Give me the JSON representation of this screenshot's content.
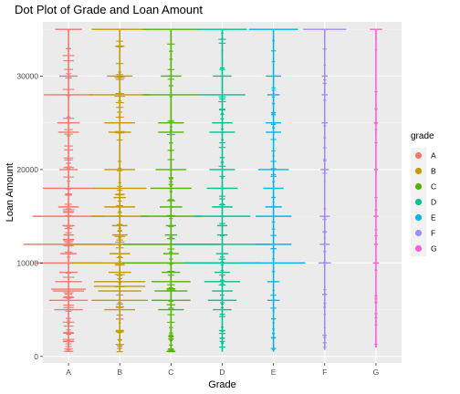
{
  "chart_data": {
    "type": "scatter",
    "title": "Dot Plot of Grade and Loan Amount",
    "xlabel": "Grade",
    "ylabel": "Loan Amount",
    "categories": [
      "A",
      "B",
      "C",
      "D",
      "E",
      "F",
      "G"
    ],
    "y_ticks": [
      0,
      10000,
      20000,
      30000
    ],
    "y_tick_labels": [
      "0",
      "10000",
      "20000",
      "30000"
    ],
    "ylim": [
      -700,
      35800
    ],
    "grid": true,
    "legend": {
      "title": "grade",
      "placement": "right",
      "entries": [
        "A",
        "B",
        "C",
        "D",
        "E",
        "F",
        "G"
      ]
    },
    "colors": {
      "A": "#F8766D",
      "B": "#C49A00",
      "C": "#53B400",
      "D": "#00C094",
      "E": "#00B6EB",
      "F": "#A58AFF",
      "G": "#FB61D7",
      "panel": "#EBEBEB",
      "grid_major": "#FFFFFF",
      "grid_minor": "#F5F5F5"
    },
    "series": [
      {
        "name": "A",
        "min": 500,
        "max": 35000,
        "stacks": [
          [
            5000,
            0.28
          ],
          [
            6000,
            0.38
          ],
          [
            7000,
            0.3
          ],
          [
            7200,
            0.34
          ],
          [
            8000,
            0.26
          ],
          [
            9000,
            0.18
          ],
          [
            10000,
            0.65
          ],
          [
            11000,
            0.16
          ],
          [
            12000,
            0.88
          ],
          [
            13000,
            0.1
          ],
          [
            14000,
            0.12
          ],
          [
            15000,
            0.7
          ],
          [
            16000,
            0.2
          ],
          [
            18000,
            0.5
          ],
          [
            20000,
            0.18
          ],
          [
            24000,
            0.2
          ],
          [
            25000,
            0.22
          ],
          [
            28000,
            0.48
          ],
          [
            30000,
            0.18
          ],
          [
            35000,
            0.26
          ]
        ]
      },
      {
        "name": "B",
        "min": 500,
        "max": 35000,
        "stacks": [
          [
            5000,
            0.3
          ],
          [
            6000,
            0.55
          ],
          [
            7000,
            0.42
          ],
          [
            7500,
            0.5
          ],
          [
            8000,
            0.5
          ],
          [
            9000,
            0.22
          ],
          [
            10000,
            0.95
          ],
          [
            11000,
            0.2
          ],
          [
            12000,
            0.95
          ],
          [
            13000,
            0.15
          ],
          [
            14000,
            0.15
          ],
          [
            15000,
            0.55
          ],
          [
            16000,
            0.3
          ],
          [
            17000,
            0.12
          ],
          [
            18000,
            0.52
          ],
          [
            20000,
            0.3
          ],
          [
            24000,
            0.22
          ],
          [
            25000,
            0.3
          ],
          [
            28000,
            0.6
          ],
          [
            30000,
            0.25
          ],
          [
            35000,
            0.55
          ]
        ]
      },
      {
        "name": "C",
        "min": 500,
        "max": 35000,
        "stacks": [
          [
            5000,
            0.25
          ],
          [
            6000,
            0.38
          ],
          [
            7000,
            0.32
          ],
          [
            8000,
            0.38
          ],
          [
            9000,
            0.18
          ],
          [
            10000,
            0.95
          ],
          [
            11000,
            0.15
          ],
          [
            12000,
            0.95
          ],
          [
            13000,
            0.12
          ],
          [
            14000,
            0.1
          ],
          [
            15000,
            0.6
          ],
          [
            16000,
            0.22
          ],
          [
            18000,
            0.4
          ],
          [
            20000,
            0.3
          ],
          [
            24000,
            0.25
          ],
          [
            25000,
            0.25
          ],
          [
            28000,
            0.55
          ],
          [
            30000,
            0.2
          ],
          [
            35000,
            0.55
          ]
        ]
      },
      {
        "name": "D",
        "min": 500,
        "max": 35000,
        "stacks": [
          [
            5000,
            0.18
          ],
          [
            6000,
            0.28
          ],
          [
            7000,
            0.2
          ],
          [
            8000,
            0.35
          ],
          [
            9000,
            0.15
          ],
          [
            10000,
            0.75
          ],
          [
            11000,
            0.12
          ],
          [
            12000,
            0.95
          ],
          [
            13000,
            0.1
          ],
          [
            14000,
            0.1
          ],
          [
            15000,
            0.55
          ],
          [
            16000,
            0.2
          ],
          [
            18000,
            0.3
          ],
          [
            20000,
            0.25
          ],
          [
            24000,
            0.25
          ],
          [
            25000,
            0.2
          ],
          [
            28000,
            0.45
          ],
          [
            30000,
            0.18
          ],
          [
            35000,
            0.48
          ]
        ]
      },
      {
        "name": "E",
        "min": 500,
        "max": 35000,
        "stacks": [
          [
            6000,
            0.12
          ],
          [
            8000,
            0.12
          ],
          [
            10000,
            0.62
          ],
          [
            12000,
            0.35
          ],
          [
            15000,
            0.35
          ],
          [
            16000,
            0.16
          ],
          [
            18000,
            0.2
          ],
          [
            20000,
            0.3
          ],
          [
            24000,
            0.15
          ],
          [
            25000,
            0.15
          ],
          [
            28000,
            0.12
          ],
          [
            30000,
            0.15
          ],
          [
            35000,
            0.48
          ]
        ]
      },
      {
        "name": "F",
        "min": 700,
        "max": 35000,
        "stacks": [
          [
            10000,
            0.12
          ],
          [
            12000,
            0.1
          ],
          [
            15000,
            0.1
          ],
          [
            20000,
            0.08
          ],
          [
            25000,
            0.06
          ],
          [
            28000,
            0.06
          ],
          [
            30000,
            0.06
          ],
          [
            35000,
            0.42
          ]
        ]
      },
      {
        "name": "G",
        "min": 1000,
        "max": 35000,
        "stacks": [
          [
            10000,
            0.06
          ],
          [
            12000,
            0.04
          ],
          [
            15000,
            0.05
          ],
          [
            20000,
            0.04
          ],
          [
            25000,
            0.04
          ],
          [
            35000,
            0.12
          ]
        ]
      }
    ]
  }
}
